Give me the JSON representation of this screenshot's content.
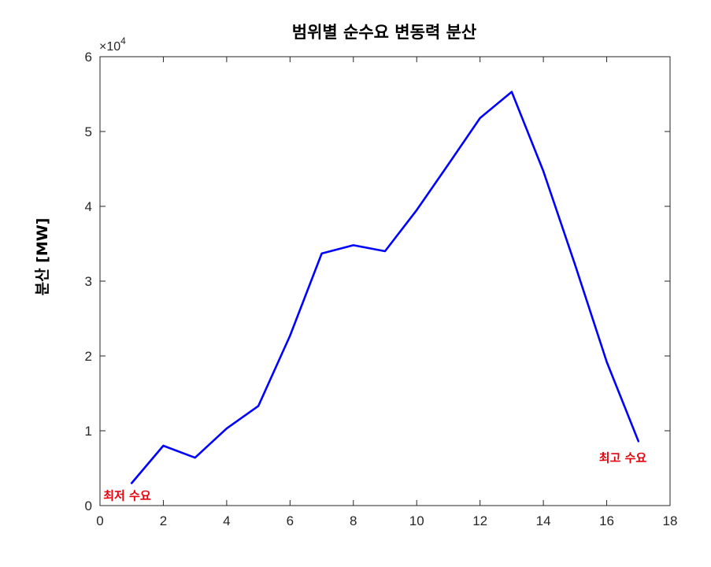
{
  "chart_data": {
    "type": "line",
    "title": "범위별 순수요 변동력 분산",
    "xlabel": "",
    "ylabel": "분산 [MW]",
    "y_multiplier": "×10",
    "y_multiplier_exponent": "4",
    "xlim": [
      0,
      18
    ],
    "ylim": [
      0,
      6
    ],
    "xticks": [
      "0",
      "2",
      "4",
      "6",
      "8",
      "10",
      "12",
      "14",
      "16",
      "18"
    ],
    "yticks": [
      "0",
      "1",
      "2",
      "3",
      "4",
      "5",
      "6"
    ],
    "grid": false,
    "series": [
      {
        "color": "#0000ff",
        "x": [
          1,
          2,
          3,
          4,
          5,
          6,
          7,
          8,
          9,
          10,
          11,
          12,
          13,
          14,
          15,
          16,
          17
        ],
        "y": [
          0.3,
          0.8,
          0.64,
          1.03,
          1.33,
          2.27,
          3.37,
          3.48,
          3.4,
          3.95,
          4.56,
          5.18,
          5.53,
          4.47,
          3.22,
          1.92,
          0.86
        ]
      }
    ],
    "annotations": [
      {
        "text": "최저 수요",
        "x": 1,
        "y": 0.3,
        "color": "#e8000b"
      },
      {
        "text": "최고 수요",
        "x": 17,
        "y": 0.86,
        "color": "#e8000b"
      }
    ]
  }
}
